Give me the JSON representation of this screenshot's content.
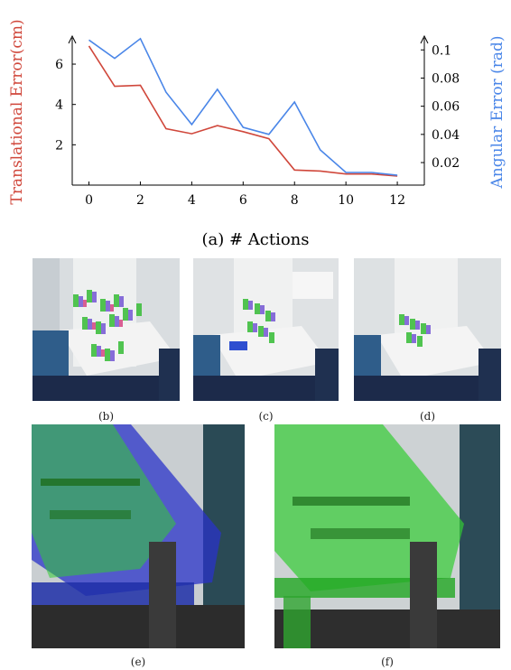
{
  "chart_data": {
    "type": "line",
    "xlabel": "(a) # Actions",
    "ylabel_left": "Translational Error(cm)",
    "ylabel_right": "Angular Error (rad)",
    "x_ticks": [
      0,
      2,
      4,
      6,
      8,
      10,
      12
    ],
    "y_left_ticks": [
      2,
      4,
      6
    ],
    "y_right_ticks": [
      0.02,
      0.04,
      0.06,
      0.08,
      0.1
    ],
    "y_right_tick_labels": [
      "0.02",
      "0.04",
      "0.06",
      "0.08",
      "0.1"
    ],
    "xlim": [
      -0.3,
      12.7
    ],
    "ylim_left": [
      0,
      7.3
    ],
    "ylim_right": [
      0.004,
      0.1085
    ],
    "series": [
      {
        "name": "Translational Error(cm)",
        "axis": "left",
        "color": "#d0473b",
        "x": [
          0,
          1,
          2,
          3,
          4,
          5,
          6,
          7,
          8,
          9,
          10,
          11,
          12
        ],
        "values": [
          6.9,
          4.9,
          4.95,
          2.8,
          2.55,
          2.95,
          2.65,
          2.3,
          0.75,
          0.7,
          0.55,
          0.55,
          0.45
        ]
      },
      {
        "name": "Angular Error (rad)",
        "axis": "right",
        "color": "#4a86e8",
        "x": [
          0,
          1,
          2,
          3,
          4,
          5,
          6,
          7,
          8,
          9,
          10,
          11,
          12
        ],
        "values": [
          0.107,
          0.094,
          0.108,
          0.07,
          0.047,
          0.072,
          0.045,
          0.04,
          0.063,
          0.029,
          0.013,
          0.013,
          0.011
        ]
      }
    ]
  },
  "panels": {
    "b": {
      "caption": "(b)"
    },
    "c": {
      "caption": "(c)"
    },
    "d": {
      "caption": "(d)"
    },
    "e": {
      "caption": "(e)"
    },
    "f": {
      "caption": "(f)"
    }
  },
  "colors": {
    "translational": "#d0473b",
    "angular": "#4a86e8",
    "overlay_green": "#33cc33",
    "overlay_blue": "#2233cc"
  }
}
